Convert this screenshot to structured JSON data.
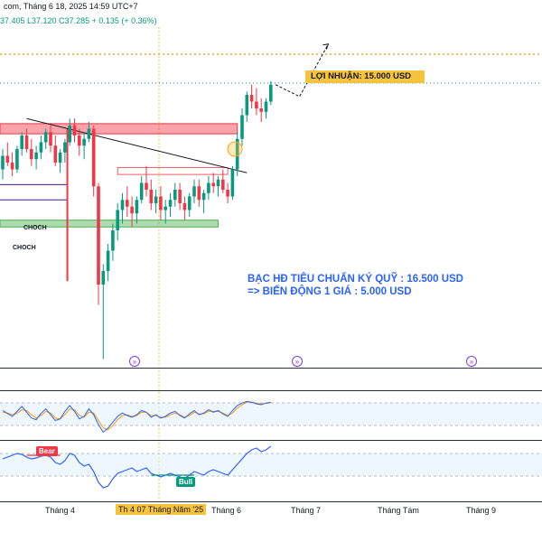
{
  "header": {
    "title_fragment": "com, Tháng 6 18, 2025 14:59 UTC+7",
    "ohlc": "37.405  L37.120  C37.285  + 0.135 (+ 0.36%)"
  },
  "annotations": {
    "profit_label": "LỢI NHUẬN: 15.000 USD",
    "note_line1": "BẠC HĐ TIÊU CHUẨN KÝ QUỸ : 16.500 USD",
    "note_line2": "=> BIẾN ĐỘNG 1 GIÁ : 5.000 USD",
    "choch_1": "CHOCH",
    "choch_2": "CHOCH",
    "bear_tag": "Bear",
    "bull_tag": "Bull",
    "forward_icon": "fast-forward-icon"
  },
  "xaxis": {
    "labels": [
      "Tháng 4",
      "Th 4 07 Tháng Năm '25",
      "Tháng 6",
      "Tháng 7",
      "Tháng Tám",
      "Tháng 9"
    ]
  },
  "colors": {
    "up": "#089981",
    "down": "#f23645",
    "resistance_zone": "#f23645",
    "support_zone": "#4caf50",
    "profit_line": "#f6a623",
    "current_price_line": "#089981",
    "indicator_blue": "#2962ff",
    "indicator_orange": "#ff9800",
    "crosshair": "#f6c33c"
  },
  "chart_data": {
    "type": "candlestick",
    "series": [
      {
        "name": "",
        "values": [
          [
            36.8,
            37.4,
            36.5,
            37.2
          ],
          [
            37.2,
            37.6,
            36.9,
            37.0
          ],
          [
            37.0,
            37.3,
            36.6,
            36.8
          ],
          [
            36.8,
            37.5,
            36.7,
            37.4
          ],
          [
            37.4,
            37.9,
            37.2,
            37.8
          ],
          [
            37.8,
            38.0,
            37.3,
            37.4
          ],
          [
            37.4,
            37.7,
            36.9,
            37.1
          ],
          [
            37.1,
            37.5,
            36.8,
            37.3
          ],
          [
            37.3,
            37.8,
            37.1,
            37.6
          ],
          [
            37.6,
            38.0,
            37.4,
            37.9
          ],
          [
            37.9,
            38.1,
            37.3,
            37.5
          ],
          [
            37.5,
            37.8,
            36.9,
            37.0
          ],
          [
            37.0,
            37.4,
            36.7,
            37.3
          ],
          [
            37.3,
            37.7,
            37.0,
            37.6
          ],
          [
            37.6,
            38.3,
            37.5,
            38.1
          ],
          [
            38.1,
            38.3,
            37.6,
            37.8
          ],
          [
            37.8,
            38.0,
            37.2,
            37.5
          ],
          [
            37.5,
            37.9,
            37.1,
            37.7
          ],
          [
            37.7,
            38.2,
            37.6,
            38.0
          ],
          [
            38.0,
            38.1,
            36.0,
            36.3
          ],
          [
            36.3,
            36.4,
            32.8,
            33.4
          ],
          [
            33.4,
            34.0,
            31.2,
            33.8
          ],
          [
            33.8,
            34.6,
            33.5,
            34.4
          ],
          [
            34.4,
            35.2,
            34.1,
            35.0
          ],
          [
            35.0,
            35.8,
            34.7,
            35.6
          ],
          [
            35.6,
            36.1,
            35.2,
            35.9
          ],
          [
            35.9,
            36.3,
            35.4,
            35.7
          ],
          [
            35.7,
            36.0,
            35.1,
            35.5
          ],
          [
            35.5,
            36.0,
            35.2,
            35.9
          ],
          [
            35.9,
            36.6,
            35.8,
            36.4
          ],
          [
            36.4,
            36.9,
            36.0,
            36.2
          ],
          [
            36.2,
            36.5,
            35.6,
            35.8
          ],
          [
            35.8,
            36.2,
            35.5,
            36.0
          ],
          [
            36.0,
            36.3,
            35.3,
            35.6
          ],
          [
            35.6,
            35.9,
            35.2,
            35.7
          ],
          [
            35.7,
            36.1,
            35.4,
            35.9
          ],
          [
            35.9,
            36.4,
            35.7,
            36.2
          ],
          [
            36.2,
            36.4,
            35.6,
            35.8
          ],
          [
            35.8,
            36.0,
            35.3,
            35.6
          ],
          [
            35.6,
            36.1,
            35.4,
            36.0
          ],
          [
            36.0,
            36.5,
            35.8,
            36.3
          ],
          [
            36.3,
            36.5,
            35.7,
            35.9
          ],
          [
            35.9,
            36.2,
            35.5,
            36.1
          ],
          [
            36.1,
            36.6,
            35.9,
            36.4
          ],
          [
            36.4,
            36.7,
            36.1,
            36.3
          ],
          [
            36.3,
            36.6,
            36.0,
            36.5
          ],
          [
            36.5,
            36.8,
            36.1,
            36.2
          ],
          [
            36.2,
            36.4,
            35.8,
            36.0
          ],
          [
            36.0,
            36.9,
            35.9,
            36.8
          ],
          [
            36.8,
            37.9,
            36.6,
            37.7
          ],
          [
            37.7,
            38.6,
            37.5,
            38.4
          ],
          [
            38.4,
            39.1,
            38.2,
            39.0
          ],
          [
            39.0,
            39.3,
            38.6,
            38.8
          ],
          [
            38.8,
            39.2,
            38.4,
            38.6
          ],
          [
            38.6,
            38.9,
            38.2,
            38.5
          ],
          [
            38.5,
            38.9,
            38.3,
            38.8
          ],
          [
            38.8,
            39.4,
            38.7,
            39.3
          ]
        ]
      }
    ],
    "ylim": [
      31.0,
      41.0
    ],
    "levels": {
      "profit_target": 40.2,
      "current_price": 39.35,
      "resistance_zone": [
        37.85,
        38.15
      ],
      "support_zone": [
        35.1,
        35.3
      ],
      "choch_1": 36.35,
      "choch_2": 35.9
    },
    "trendline": [
      [
        5,
        38.3
      ],
      [
        51,
        36.7
      ]
    ],
    "projection": [
      [
        57,
        39.3
      ],
      [
        62,
        38.95
      ],
      [
        68,
        40.5
      ]
    ],
    "indicators": {
      "oscillator_fast": [
        62,
        55,
        48,
        60,
        72,
        58,
        44,
        40,
        55,
        66,
        52,
        38,
        42,
        60,
        74,
        60,
        42,
        48,
        66,
        52,
        28,
        10,
        20,
        34,
        48,
        56,
        50,
        46,
        52,
        62,
        58,
        46,
        52,
        44,
        48,
        56,
        60,
        50,
        44,
        54,
        62,
        52,
        56,
        64,
        58,
        62,
        54,
        48,
        62,
        74,
        80,
        84,
        82,
        78,
        76,
        80,
        82
      ],
      "oscillator_slow": [
        58,
        56,
        52,
        55,
        64,
        62,
        52,
        44,
        50,
        60,
        56,
        44,
        42,
        52,
        66,
        64,
        50,
        46,
        58,
        56,
        38,
        20,
        16,
        26,
        40,
        50,
        52,
        48,
        50,
        58,
        58,
        50,
        50,
        46,
        46,
        52,
        56,
        52,
        46,
        50,
        58,
        54,
        54,
        60,
        60,
        60,
        56,
        50,
        56,
        68,
        76,
        82,
        82,
        80,
        78,
        79,
        81
      ],
      "trend_line": [
        44,
        46,
        48,
        50,
        49,
        46,
        44,
        45,
        47,
        48,
        46,
        40,
        38,
        42,
        50,
        48,
        40,
        36,
        38,
        30,
        18,
        12,
        14,
        22,
        28,
        30,
        32,
        34,
        30,
        32,
        34,
        28,
        26,
        24,
        26,
        28,
        26,
        24,
        22,
        26,
        30,
        28,
        26,
        30,
        32,
        30,
        28,
        26,
        32,
        38,
        44,
        50,
        54,
        56,
        52,
        54,
        58
      ]
    }
  }
}
